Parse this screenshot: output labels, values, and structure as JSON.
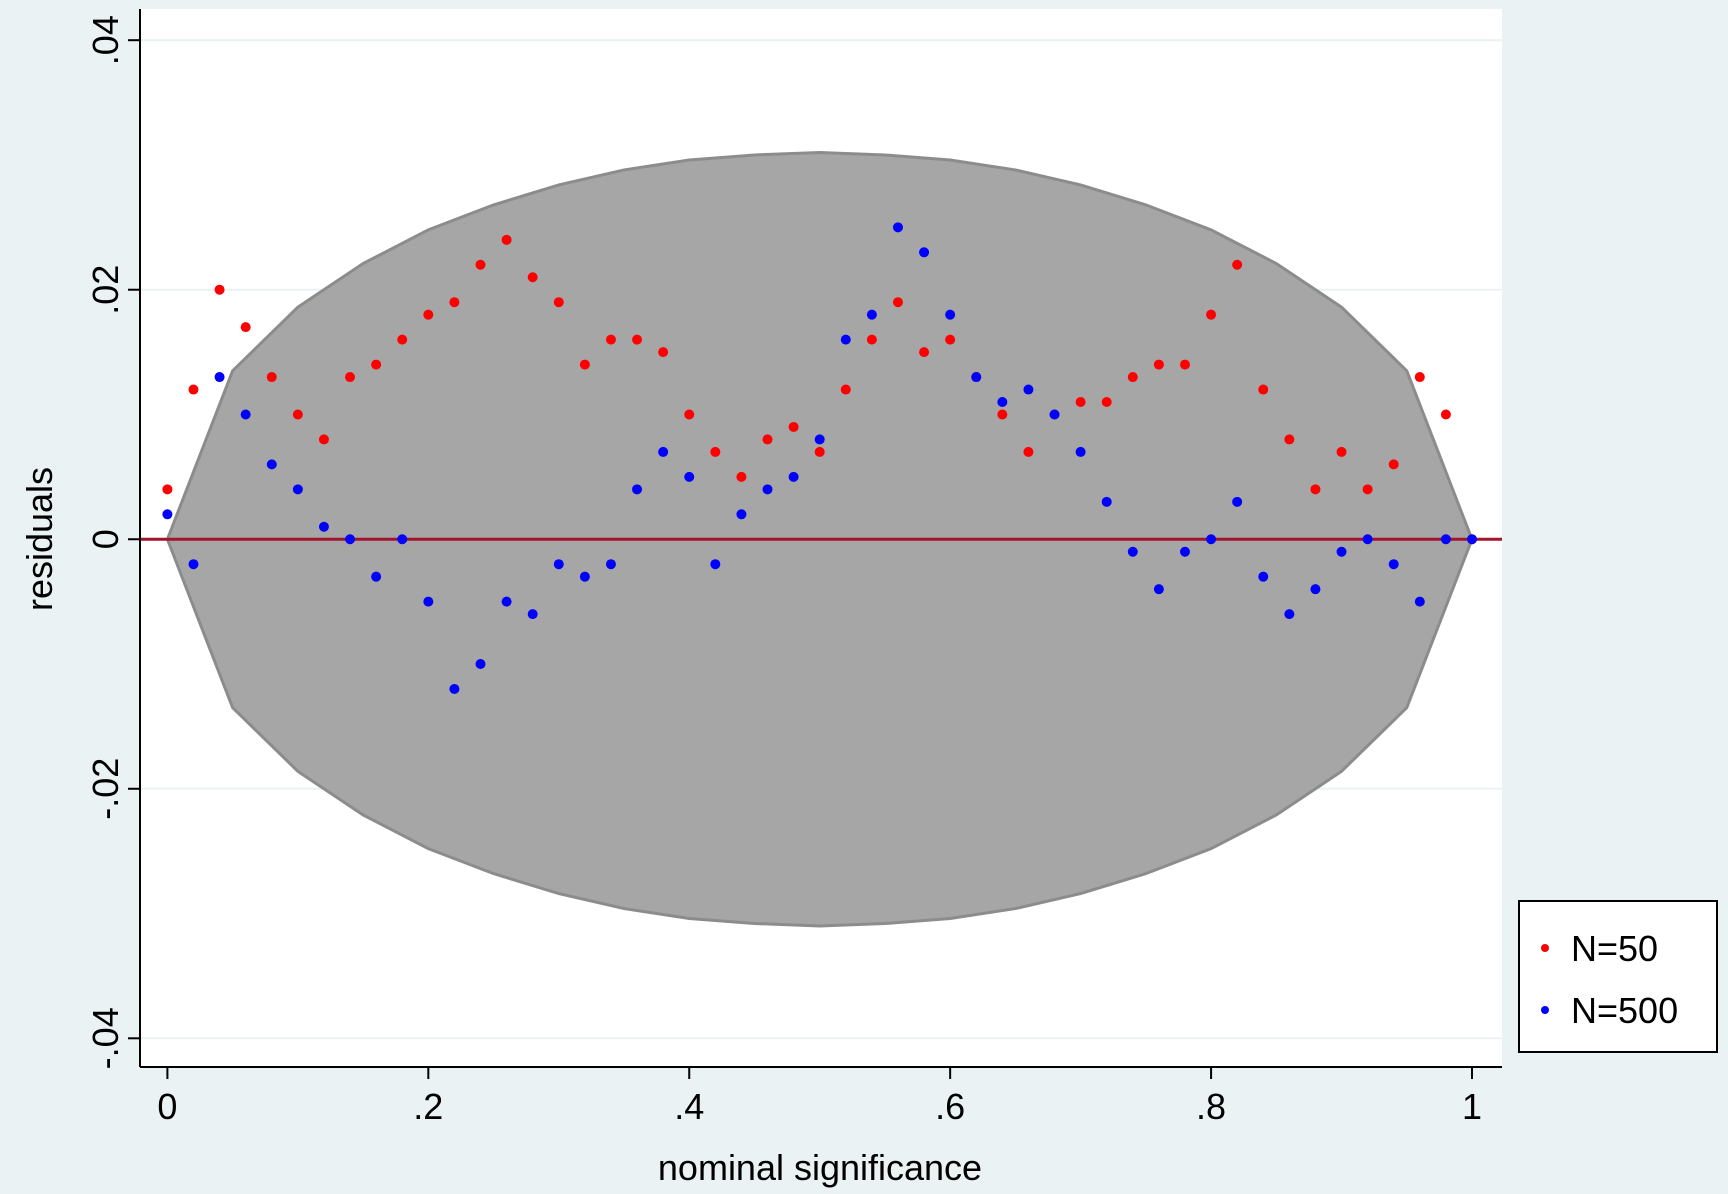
{
  "chart_data": {
    "type": "scatter",
    "x_label": "nominal significance",
    "y_label": "residuals",
    "xlim": [
      -0.021,
      1.023
    ],
    "ylim": [
      -0.0423,
      0.0425
    ],
    "xticks": [
      0,
      {
        "value": 0.2,
        "label": ".2"
      },
      {
        "value": 0.4,
        "label": ".4"
      },
      {
        "value": 0.6,
        "label": ".6"
      },
      {
        "value": 0.8,
        "label": ".8"
      },
      1
    ],
    "yticks": [
      {
        "value": -0.04,
        "label": "-.04"
      },
      {
        "value": -0.02,
        "label": "-.02"
      },
      0,
      {
        "value": 0.02,
        "label": ".02"
      },
      {
        "value": 0.04,
        "label": ".04"
      }
    ],
    "grid": true,
    "legend": "right",
    "band": {
      "color": "#a6a6a6",
      "x": [
        0,
        0.05,
        0.1,
        0.15,
        0.2,
        0.25,
        0.3,
        0.35,
        0.4,
        0.45,
        0.5,
        0.55,
        0.6,
        0.65,
        0.7,
        0.75,
        0.8,
        0.85,
        0.9,
        0.95,
        1
      ],
      "upper": [
        0,
        0.0135,
        0.0186,
        0.0221,
        0.0248,
        0.0268,
        0.0284,
        0.0296,
        0.0304,
        0.0308,
        0.031,
        0.0308,
        0.0304,
        0.0296,
        0.0284,
        0.0268,
        0.0248,
        0.0221,
        0.0186,
        0.0135,
        0
      ],
      "lower": [
        0,
        -0.0135,
        -0.0186,
        -0.0221,
        -0.0248,
        -0.0268,
        -0.0284,
        -0.0296,
        -0.0304,
        -0.0308,
        -0.031,
        -0.0308,
        -0.0304,
        -0.0296,
        -0.0284,
        -0.0268,
        -0.0248,
        -0.0221,
        -0.0186,
        -0.0135,
        0
      ]
    },
    "hline": {
      "value": 0,
      "color": "#a0142e"
    },
    "x": [
      0,
      0.02,
      0.04,
      0.06,
      0.08,
      0.1,
      0.12,
      0.14,
      0.16,
      0.18,
      0.2,
      0.22,
      0.24,
      0.26,
      0.28,
      0.3,
      0.32,
      0.34,
      0.36,
      0.38,
      0.4,
      0.42,
      0.44,
      0.46,
      0.48,
      0.5,
      0.52,
      0.54,
      0.56,
      0.58,
      0.6,
      0.62,
      0.64,
      0.66,
      0.68,
      0.7,
      0.72,
      0.74,
      0.76,
      0.78,
      0.8,
      0.82,
      0.84,
      0.86,
      0.88,
      0.9,
      0.92,
      0.94,
      0.96,
      0.98,
      1
    ],
    "series": [
      {
        "name": "N=50",
        "color": "#ff0000",
        "values": [
          0.004,
          0.012,
          0.02,
          0.017,
          0.013,
          0.01,
          0.008,
          0.013,
          0.014,
          0.016,
          0.018,
          0.019,
          0.022,
          0.024,
          0.021,
          0.019,
          0.014,
          0.016,
          0.016,
          0.015,
          0.01,
          0.007,
          0.005,
          0.008,
          0.009,
          0.007,
          0.012,
          0.016,
          0.019,
          0.015,
          0.016,
          0.013,
          0.01,
          0.007,
          0.01,
          0.011,
          0.011,
          0.013,
          0.014,
          0.014,
          0.018,
          0.022,
          0.012,
          0.008,
          0.004,
          0.007,
          0.004,
          0.006,
          0.013,
          0.01,
          0
        ]
      },
      {
        "name": "N=500",
        "color": "#0000ff",
        "values": [
          0.002,
          -0.002,
          0.013,
          0.01,
          0.006,
          0.004,
          0.001,
          0,
          -0.003,
          0,
          -0.005,
          -0.012,
          -0.01,
          -0.005,
          -0.006,
          -0.002,
          -0.003,
          -0.002,
          0.004,
          0.007,
          0.005,
          -0.002,
          0.002,
          0.004,
          0.005,
          0.008,
          0.016,
          0.018,
          0.025,
          0.023,
          0.018,
          0.013,
          0.011,
          0.012,
          0.01,
          0.007,
          0.003,
          -0.001,
          -0.004,
          -0.001,
          0,
          0.003,
          -0.003,
          -0.006,
          -0.004,
          -0.001,
          0,
          -0.002,
          -0.005,
          0,
          0
        ]
      }
    ]
  }
}
